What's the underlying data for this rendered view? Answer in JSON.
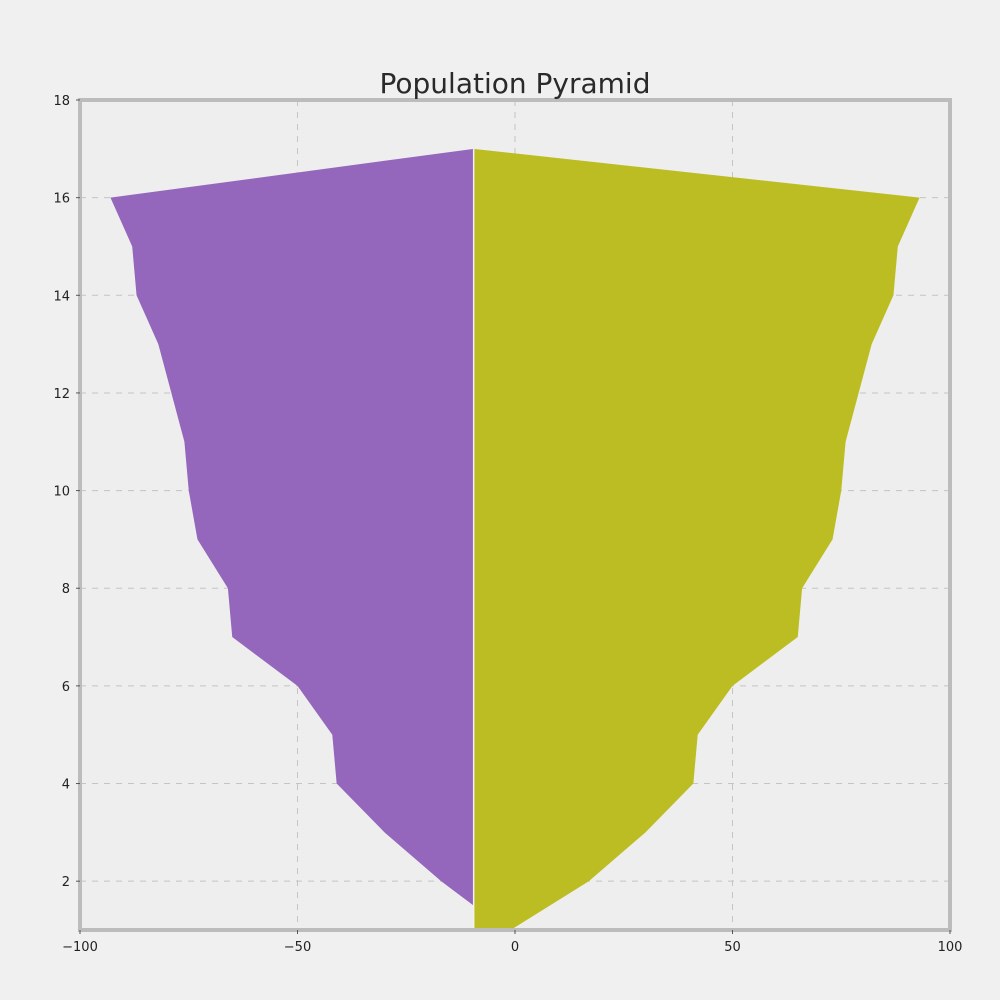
{
  "chart_data": {
    "type": "area",
    "title": "Population Pyramid",
    "xlabel": "",
    "ylabel": "",
    "xlim": [
      -100,
      100
    ],
    "ylim": [
      1,
      18
    ],
    "x_ticks": [
      "−100",
      "−50",
      "0",
      "50",
      "100"
    ],
    "x_tick_values": [
      -100,
      -50,
      0,
      50,
      100
    ],
    "y_ticks": [
      "2",
      "4",
      "6",
      "8",
      "10",
      "12",
      "14",
      "16",
      "18"
    ],
    "y_tick_values": [
      2,
      4,
      6,
      8,
      10,
      12,
      14,
      16,
      18
    ],
    "grid": true,
    "baseline_x": -9.5,
    "series": [
      {
        "color": "#9467bd",
        "side": "left",
        "y": [
          1.5,
          2,
          3,
          4,
          5,
          6,
          7,
          8,
          9,
          10,
          11,
          13,
          14,
          15,
          16,
          17
        ],
        "values": [
          -9.5,
          -17,
          -30,
          -41,
          -42,
          -50,
          -65,
          -66,
          -73,
          -75,
          -76,
          -82,
          -87,
          -88,
          -93,
          -9.5
        ]
      },
      {
        "color": "#bcbd22",
        "side": "right",
        "y": [
          1,
          2,
          3,
          4,
          5,
          6,
          7,
          8,
          9,
          10,
          11,
          13,
          14,
          15,
          16,
          17
        ],
        "values": [
          -1,
          17,
          30,
          41,
          42,
          50,
          65,
          66,
          73,
          75,
          76,
          82,
          87,
          88,
          93,
          -9.5
        ]
      }
    ]
  }
}
